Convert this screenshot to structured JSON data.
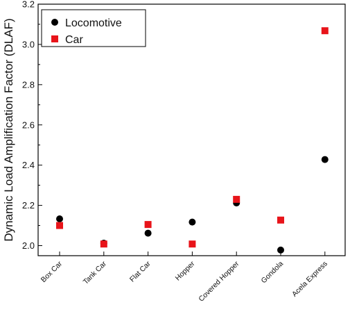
{
  "chart_data": {
    "type": "scatter",
    "title": "",
    "xlabel": "",
    "ylabel": "Dynamic Load Amplification Factor (DLAF)",
    "ylim": [
      1.95,
      3.2
    ],
    "y_ticks": [
      "2.0",
      "2.2",
      "2.4",
      "2.6",
      "2.8",
      "3.0",
      "3.2"
    ],
    "categories": [
      "Box Car",
      "Tank Car",
      "Flat Car",
      "Hopper",
      "Covered Hopper",
      "Gondola",
      "Acela Express"
    ],
    "legend_position": "top-left",
    "grid": false,
    "series": [
      {
        "name": "Locomotive",
        "marker": "circle",
        "color": "#000000",
        "values": [
          2.133,
          2.012,
          2.062,
          2.117,
          2.212,
          1.978,
          2.428
        ]
      },
      {
        "name": "Car",
        "marker": "square",
        "color": "#e8141a",
        "values": [
          2.1,
          2.008,
          2.105,
          2.008,
          2.23,
          2.127,
          3.068
        ]
      }
    ]
  }
}
